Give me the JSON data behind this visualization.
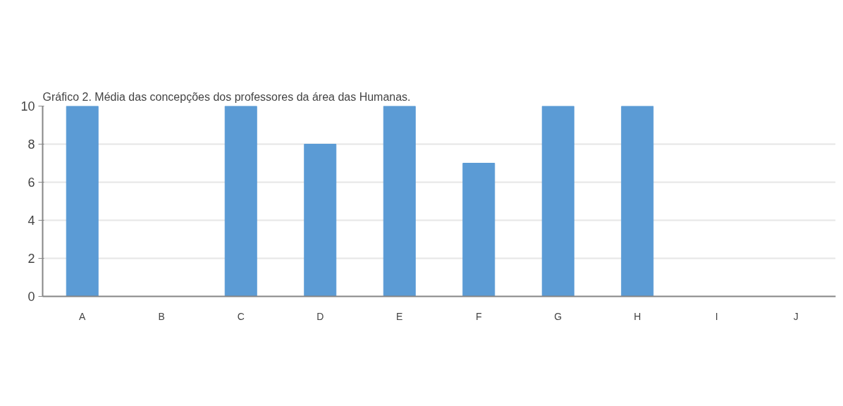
{
  "chart_data": {
    "type": "bar",
    "title": "Gráfico 2. Média das concepções dos professores da área das Humanas.",
    "categories": [
      "A",
      "B",
      "C",
      "D",
      "E",
      "F",
      "G",
      "H",
      "I",
      "J"
    ],
    "values": [
      10,
      0,
      10,
      8,
      10,
      7,
      10,
      10,
      0,
      0
    ],
    "color": "#5b9bd5",
    "ylim": [
      0,
      10
    ],
    "yticks": [
      0,
      2,
      4,
      6,
      8,
      10
    ],
    "grid": "y"
  }
}
